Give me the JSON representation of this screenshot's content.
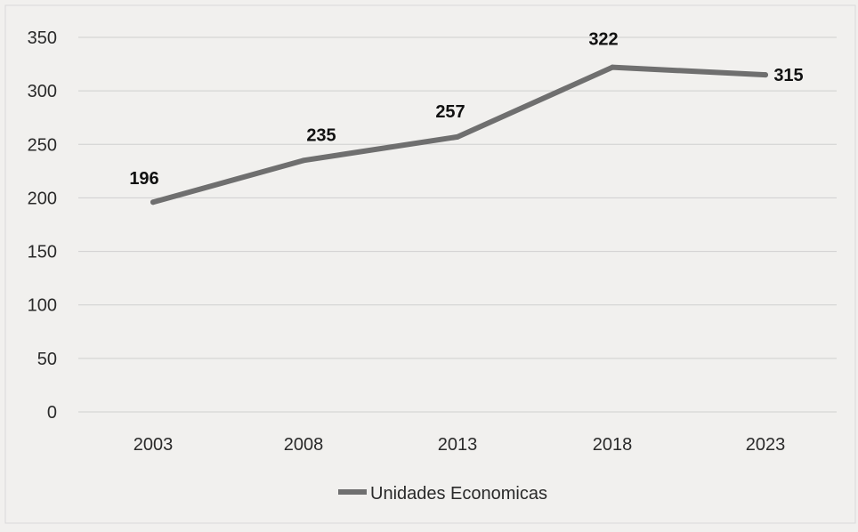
{
  "chart_data": {
    "type": "line",
    "title": "",
    "xlabel": "",
    "ylabel": "",
    "categories": [
      "2003",
      "2008",
      "2013",
      "2018",
      "2023"
    ],
    "series": [
      {
        "name": "Unidades Economicas",
        "values": [
          196,
          235,
          257,
          322,
          315
        ],
        "color": "#6f6f6f"
      }
    ],
    "data_labels": [
      "196",
      "235",
      "257",
      "322",
      "315"
    ],
    "ylim": [
      0,
      350
    ],
    "yticks": [
      0,
      50,
      100,
      150,
      200,
      250,
      300,
      350
    ],
    "ytick_labels": [
      "0",
      "50",
      "100",
      "150",
      "200",
      "250",
      "300",
      "350"
    ],
    "grid": true,
    "legend_position": "bottom"
  },
  "colors": {
    "background": "#f1f0ee",
    "gridline": "#cfcfcf",
    "line": "#6f6f6f",
    "text": "#2a2a2a"
  }
}
